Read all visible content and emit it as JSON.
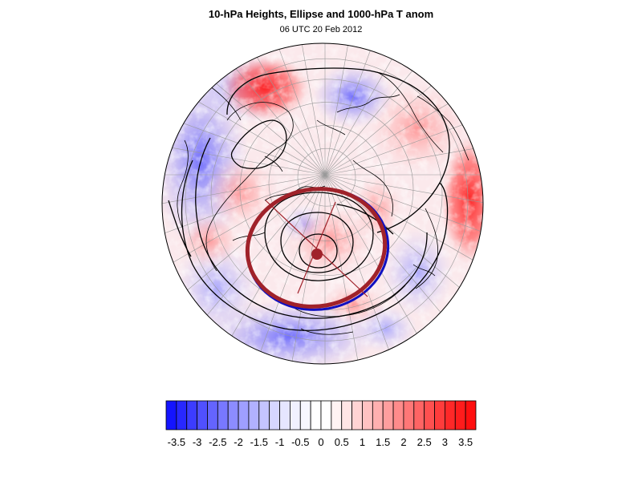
{
  "title": "10-hPa Heights, Ellipse and 1000-hPa T anom",
  "subtitle": "06 UTC 20 Feb 2012",
  "colors": {
    "ellipse": "#a0222a",
    "ellipse_edge": "#1010c0",
    "contour": "#000000",
    "coast": "#000000",
    "grid": "#9a9a9a"
  },
  "colorbar": {
    "levels": [
      -3.75,
      -3.5,
      -3.25,
      -3,
      -2.75,
      -2.5,
      -2.25,
      -2,
      -1.75,
      -1.5,
      -1.25,
      -1,
      -0.75,
      -0.5,
      -0.25,
      0,
      0.25,
      0.5,
      0.75,
      1,
      1.25,
      1.5,
      1.75,
      2,
      2.25,
      2.5,
      2.75,
      3,
      3.25,
      3.5,
      3.75
    ],
    "colors": [
      "#1414ff",
      "#2828ff",
      "#3c3cff",
      "#5050ff",
      "#6464ff",
      "#7878ff",
      "#8c8cff",
      "#9f9fff",
      "#b1b1ff",
      "#c4c4ff",
      "#d6d6ff",
      "#e6e6ff",
      "#f1f1ff",
      "#f7f7ff",
      "#ffffff",
      "#ffffff",
      "#fff3f3",
      "#ffe5e5",
      "#ffd4d4",
      "#ffc2c2",
      "#ffb0b0",
      "#ff9e9e",
      "#ff8b8b",
      "#ff7777",
      "#ff6464",
      "#ff5050",
      "#ff3c3c",
      "#ff2828",
      "#ff1c1c",
      "#ff0f0f"
    ],
    "tick_labels": [
      "-3.5",
      "-3",
      "-2.5",
      "-2",
      "-1.5",
      "-1",
      "-0.5",
      "0",
      "0.5",
      "1",
      "1.5",
      "2",
      "2.5",
      "3",
      "3.5"
    ]
  }
}
